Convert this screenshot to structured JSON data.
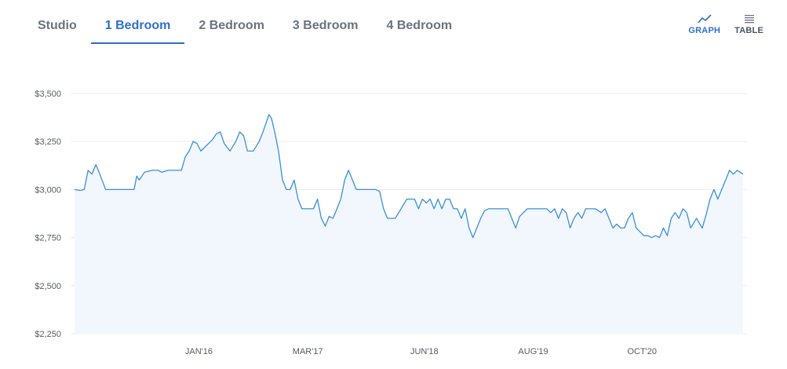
{
  "tabs": [
    {
      "label": "Studio",
      "active": false
    },
    {
      "label": "1 Bedroom",
      "active": true
    },
    {
      "label": "2 Bedroom",
      "active": false
    },
    {
      "label": "3 Bedroom",
      "active": false
    },
    {
      "label": "4 Bedroom",
      "active": false
    }
  ],
  "view_toggle": {
    "graph_label": "GRAPH",
    "graph_icon": "line-chart-icon",
    "table_label": "TABLE",
    "table_icon": "table-icon",
    "active": "graph"
  },
  "colors": {
    "accent": "#2f6fc9",
    "line": "#3b8fd8",
    "fill": "#f2f7fd",
    "grid": "#ececec"
  },
  "chart_data": {
    "type": "area",
    "title": "",
    "xlabel": "",
    "ylabel": "",
    "ylim": [
      2250,
      3500
    ],
    "y_ticks": [
      2250,
      2500,
      2750,
      3000,
      3250,
      3500
    ],
    "y_tick_labels": [
      "$2,250",
      "$2,500",
      "$2,750",
      "$3,000",
      "$3,250",
      "$3,500"
    ],
    "x_tick_labels": [
      "JAN'16",
      "MAR'17",
      "JUN'18",
      "AUG'19",
      "OCT'20"
    ],
    "x_tick_dates": [
      "2016-01",
      "2017-03",
      "2018-06",
      "2019-08",
      "2020-10"
    ],
    "x_range": [
      "2014-09",
      "2021-11"
    ],
    "grid": true,
    "series": [
      {
        "points": [
          [
            "2014-09",
            3000
          ],
          [
            "2014-10",
            2995
          ],
          [
            "2014-10",
            3000
          ],
          [
            "2014-11",
            3100
          ],
          [
            "2014-11",
            3080
          ],
          [
            "2014-12",
            3130
          ],
          [
            "2014-12",
            3080
          ],
          [
            "2015-01",
            3000
          ],
          [
            "2015-02",
            3000
          ],
          [
            "2015-03",
            3000
          ],
          [
            "2015-04",
            3000
          ],
          [
            "2015-05",
            3000
          ],
          [
            "2015-05",
            3070
          ],
          [
            "2015-05",
            3050
          ],
          [
            "2015-06",
            3090
          ],
          [
            "2015-07",
            3100
          ],
          [
            "2015-08",
            3100
          ],
          [
            "2015-08",
            3090
          ],
          [
            "2015-09",
            3100
          ],
          [
            "2015-10",
            3100
          ],
          [
            "2015-11",
            3100
          ],
          [
            "2015-11",
            3170
          ],
          [
            "2015-12",
            3200
          ],
          [
            "2015-12",
            3250
          ],
          [
            "2016-01",
            3240
          ],
          [
            "2016-01",
            3200
          ],
          [
            "2016-02",
            3230
          ],
          [
            "2016-03",
            3260
          ],
          [
            "2016-03",
            3290
          ],
          [
            "2016-04",
            3300
          ],
          [
            "2016-04",
            3240
          ],
          [
            "2016-05",
            3200
          ],
          [
            "2016-06",
            3250
          ],
          [
            "2016-06",
            3300
          ],
          [
            "2016-07",
            3280
          ],
          [
            "2016-07",
            3200
          ],
          [
            "2016-08",
            3200
          ],
          [
            "2016-09",
            3250
          ],
          [
            "2016-09",
            3300
          ],
          [
            "2016-10",
            3350
          ],
          [
            "2016-10",
            3390
          ],
          [
            "2016-10",
            3370
          ],
          [
            "2016-11",
            3300
          ],
          [
            "2016-11",
            3200
          ],
          [
            "2016-12",
            3050
          ],
          [
            "2016-12",
            3000
          ],
          [
            "2017-01",
            3000
          ],
          [
            "2017-01",
            3050
          ],
          [
            "2017-02",
            2950
          ],
          [
            "2017-02",
            2900
          ],
          [
            "2017-03",
            2900
          ],
          [
            "2017-04",
            2900
          ],
          [
            "2017-04",
            2950
          ],
          [
            "2017-05",
            2850
          ],
          [
            "2017-05",
            2810
          ],
          [
            "2017-06",
            2860
          ],
          [
            "2017-06",
            2850
          ],
          [
            "2017-07",
            2900
          ],
          [
            "2017-07",
            2950
          ],
          [
            "2017-08",
            3050
          ],
          [
            "2017-08",
            3100
          ],
          [
            "2017-09",
            3050
          ],
          [
            "2017-09",
            3000
          ],
          [
            "2017-10",
            3000
          ],
          [
            "2017-11",
            3000
          ],
          [
            "2017-12",
            3000
          ],
          [
            "2017-12",
            2990
          ],
          [
            "2018-01",
            2900
          ],
          [
            "2018-01",
            2850
          ],
          [
            "2018-02",
            2850
          ],
          [
            "2018-02",
            2850
          ],
          [
            "2018-03",
            2900
          ],
          [
            "2018-04",
            2950
          ],
          [
            "2018-04",
            2950
          ],
          [
            "2018-05",
            2950
          ],
          [
            "2018-05",
            2900
          ],
          [
            "2018-06",
            2950
          ],
          [
            "2018-06",
            2930
          ],
          [
            "2018-07",
            2950
          ],
          [
            "2018-07",
            2900
          ],
          [
            "2018-08",
            2950
          ],
          [
            "2018-08",
            2900
          ],
          [
            "2018-09",
            2950
          ],
          [
            "2018-09",
            2950
          ],
          [
            "2018-10",
            2900
          ],
          [
            "2018-10",
            2900
          ],
          [
            "2018-11",
            2850
          ],
          [
            "2018-11",
            2900
          ],
          [
            "2018-12",
            2800
          ],
          [
            "2018-12",
            2750
          ],
          [
            "2019-01",
            2800
          ],
          [
            "2019-01",
            2850
          ],
          [
            "2019-02",
            2890
          ],
          [
            "2019-02",
            2900
          ],
          [
            "2019-03",
            2900
          ],
          [
            "2019-04",
            2900
          ],
          [
            "2019-05",
            2900
          ],
          [
            "2019-05",
            2850
          ],
          [
            "2019-06",
            2800
          ],
          [
            "2019-06",
            2860
          ],
          [
            "2019-07",
            2880
          ],
          [
            "2019-07",
            2900
          ],
          [
            "2019-08",
            2900
          ],
          [
            "2019-09",
            2900
          ],
          [
            "2019-10",
            2900
          ],
          [
            "2019-10",
            2880
          ],
          [
            "2019-11",
            2900
          ],
          [
            "2019-11",
            2850
          ],
          [
            "2019-12",
            2900
          ],
          [
            "2019-12",
            2880
          ],
          [
            "2020-01",
            2800
          ],
          [
            "2020-01",
            2850
          ],
          [
            "2020-02",
            2880
          ],
          [
            "2020-02",
            2850
          ],
          [
            "2020-03",
            2900
          ],
          [
            "2020-03",
            2900
          ],
          [
            "2020-04",
            2900
          ],
          [
            "2020-05",
            2880
          ],
          [
            "2020-05",
            2900
          ],
          [
            "2020-06",
            2850
          ],
          [
            "2020-06",
            2800
          ],
          [
            "2020-07",
            2820
          ],
          [
            "2020-07",
            2800
          ],
          [
            "2020-08",
            2800
          ],
          [
            "2020-08",
            2850
          ],
          [
            "2020-09",
            2880
          ],
          [
            "2020-09",
            2800
          ],
          [
            "2020-10",
            2780
          ],
          [
            "2020-10",
            2760
          ],
          [
            "2020-11",
            2760
          ],
          [
            "2020-11",
            2750
          ],
          [
            "2020-12",
            2760
          ],
          [
            "2020-12",
            2750
          ],
          [
            "2021-01",
            2800
          ],
          [
            "2021-01",
            2760
          ],
          [
            "2021-02",
            2850
          ],
          [
            "2021-02",
            2880
          ],
          [
            "2021-03",
            2850
          ],
          [
            "2021-03",
            2900
          ],
          [
            "2021-04",
            2880
          ],
          [
            "2021-04",
            2800
          ],
          [
            "2021-05",
            2850
          ],
          [
            "2021-06",
            2800
          ],
          [
            "2021-06",
            2870
          ],
          [
            "2021-07",
            2950
          ],
          [
            "2021-07",
            3000
          ],
          [
            "2021-08",
            2950
          ],
          [
            "2021-08",
            3000
          ],
          [
            "2021-09",
            3050
          ],
          [
            "2021-09",
            3100
          ],
          [
            "2021-10",
            3080
          ],
          [
            "2021-10",
            3100
          ],
          [
            "2021-11",
            3080
          ]
        ]
      }
    ]
  }
}
